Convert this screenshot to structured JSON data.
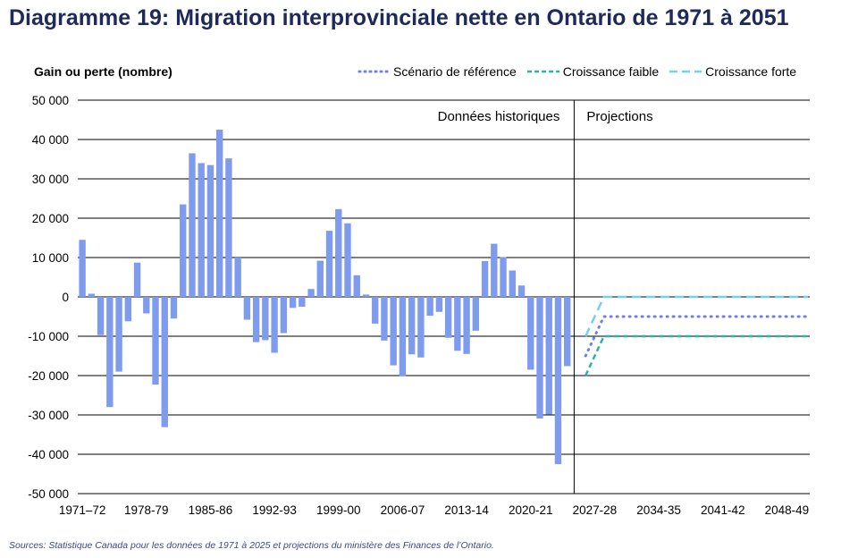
{
  "title": "Diagramme 19: Migration interprovinciale nette en Ontario de 1971 à 2051",
  "source": "Sources: Statistique Canada pour les données de 1971 à 2025 et projections du ministère des Finances de l’Ontario.",
  "colors": {
    "title": "#1f2a5a",
    "bars": "#7f9bee",
    "reference": "#6f7fe8",
    "low": "#2bb3a8",
    "high": "#6fd3ef",
    "grid": "#000000"
  },
  "chart_data": {
    "type": "bar",
    "ylabel": "Gain ou perte (nombre)",
    "ylim": [
      -50000,
      50000
    ],
    "yticks": [
      -50000,
      -40000,
      -30000,
      -20000,
      -10000,
      0,
      10000,
      20000,
      30000,
      40000,
      50000
    ],
    "ytick_labels": [
      "-50 000",
      "-40 000",
      "-30 000",
      "-20 000",
      "-10 000",
      "0",
      "10 000",
      "20 000",
      "30 000",
      "40 000",
      "50 000"
    ],
    "xtick_labels": [
      "1971–72",
      "1978-79",
      "1985-86",
      "1992-93",
      "1999-00",
      "2006-07",
      "2013-14",
      "2020-21",
      "2027-28",
      "2034-35",
      "2041-42",
      "2048-49"
    ],
    "region_labels": {
      "historical": "Données historiques",
      "projection": "Projections"
    },
    "grid": "horizontal",
    "legend_position": "top-right",
    "historical": {
      "name": "Données historiques",
      "start_year": "1971–72",
      "values": [
        14500,
        800,
        -9700,
        -28000,
        -19000,
        -6200,
        8700,
        -4200,
        -22300,
        -33100,
        -5500,
        23500,
        36500,
        34000,
        33500,
        42500,
        35200,
        10000,
        -5800,
        -11500,
        -11000,
        -14200,
        -9200,
        -2800,
        -2500,
        2000,
        9200,
        16800,
        22300,
        18700,
        5500,
        600,
        -6800,
        -11100,
        -17400,
        -20200,
        -14600,
        -15400,
        -4800,
        -3800,
        -10400,
        -13700,
        -14500,
        -8600,
        9100,
        13500,
        10100,
        6700,
        2900,
        -18500,
        -30900,
        -29900,
        -42500,
        -17600
      ]
    },
    "series": [
      {
        "name": "Scénario de référence",
        "style": "dotted",
        "values_from_2026_27": [
          -15000,
          -10000,
          -5000
        ],
        "then_constant": -5000,
        "end_year": "2050-51"
      },
      {
        "name": "Croissance faible",
        "style": "dashed-short",
        "values_from_2026_27": [
          -20000,
          -15000,
          -10000
        ],
        "then_constant": -10000,
        "end_year": "2050-51"
      },
      {
        "name": "Croissance forte",
        "style": "dashed-long",
        "values_from_2026_27": [
          -10000,
          -5000,
          0
        ],
        "then_constant": 0,
        "end_year": "2050-51"
      }
    ]
  }
}
